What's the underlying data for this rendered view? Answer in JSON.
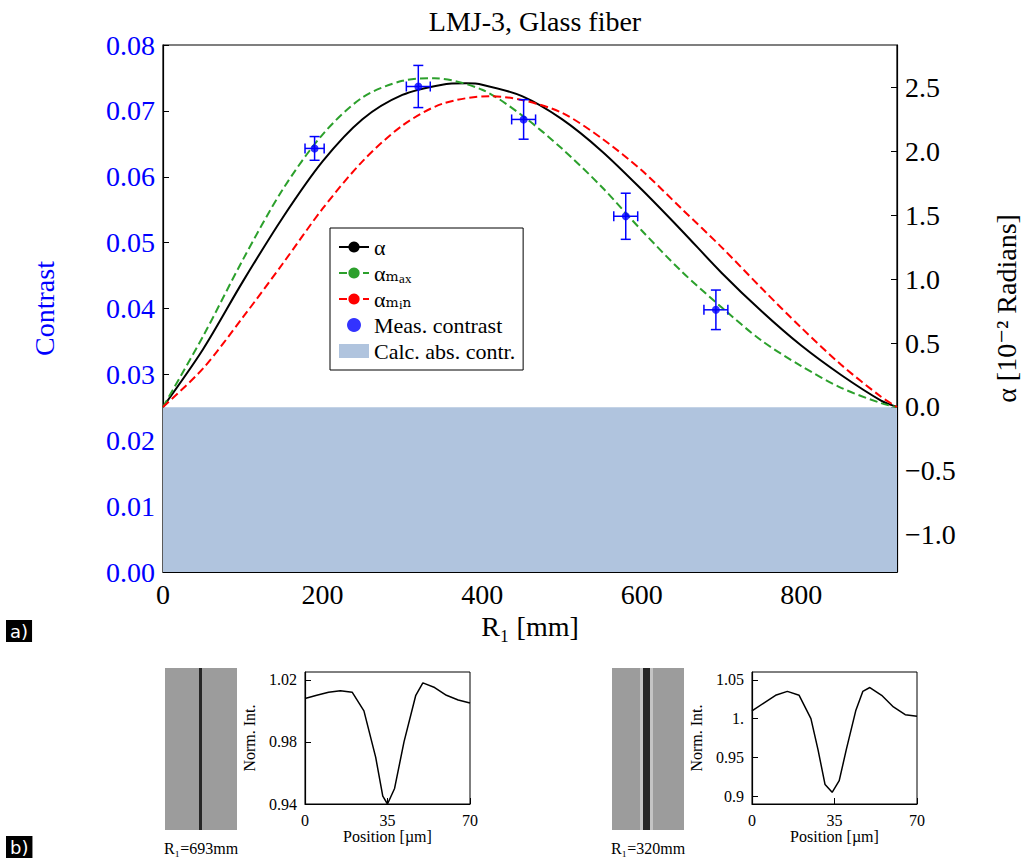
{
  "panel_labels": [
    "a)",
    "b)"
  ],
  "chart_data": [
    {
      "type": "line",
      "title": "LMJ-3, Glass fiber",
      "x_label": "R₁ [mm]",
      "y_label": "Contrast",
      "y2_label": "α [10⁻² Radians]",
      "xlim": [
        0,
        920
      ],
      "xticks": [
        0,
        200,
        400,
        600,
        800
      ],
      "ylim": [
        0,
        0.08
      ],
      "yticks": [
        {
          "value": 0,
          "label": "0.00"
        },
        0.01,
        0.02,
        0.03,
        0.04,
        0.05,
        0.06,
        0.07,
        0.08
      ],
      "y2lim": [
        -1.29,
        2.83
      ],
      "y2ticks": [
        {
          "value": -1,
          "label": "−1.0"
        },
        {
          "value": -0.5,
          "label": "−0.5"
        },
        {
          "value": 0,
          "label": "0.0"
        },
        0.5,
        {
          "value": 1,
          "label": "1.0"
        },
        1.5,
        {
          "value": 2,
          "label": "2.0"
        },
        2.5
      ],
      "grid": false,
      "legend": "center",
      "series": [
        {
          "name": "α",
          "type": "line",
          "axis": "y2",
          "color": "#000000",
          "line_style": "solid",
          "x": [
            0,
            50,
            100,
            150,
            200,
            250,
            300,
            350,
            380,
            400,
            450,
            500,
            550,
            600,
            650,
            700,
            750,
            800,
            850,
            900,
            920
          ],
          "values": [
            0,
            0.45,
            0.98,
            1.48,
            1.92,
            2.25,
            2.44,
            2.52,
            2.53,
            2.52,
            2.43,
            2.25,
            2.0,
            1.7,
            1.38,
            1.05,
            0.75,
            0.48,
            0.25,
            0.05,
            0
          ]
        },
        {
          "name": "αₘₐₓ",
          "type": "line",
          "axis": "y2",
          "color": "#2ca02c",
          "line_style": "dashed",
          "x": [
            0,
            50,
            100,
            150,
            200,
            250,
            300,
            340,
            400,
            450,
            500,
            550,
            600,
            650,
            700,
            750,
            800,
            850,
            900,
            920
          ],
          "values": [
            0,
            0.55,
            1.15,
            1.7,
            2.13,
            2.42,
            2.55,
            2.57,
            2.48,
            2.28,
            2.02,
            1.72,
            1.38,
            1.06,
            0.78,
            0.52,
            0.32,
            0.15,
            0.03,
            0
          ]
        },
        {
          "name": "αₘᵢₙ",
          "type": "line",
          "axis": "y2",
          "color": "#ff0000",
          "line_style": "dashed",
          "x": [
            0,
            50,
            100,
            150,
            200,
            250,
            300,
            350,
            410,
            450,
            500,
            550,
            600,
            650,
            700,
            750,
            800,
            850,
            900,
            920
          ],
          "values": [
            0,
            0.3,
            0.7,
            1.12,
            1.55,
            1.92,
            2.2,
            2.37,
            2.43,
            2.4,
            2.3,
            2.1,
            1.85,
            1.55,
            1.25,
            0.93,
            0.62,
            0.33,
            0.08,
            0
          ]
        },
        {
          "name": "Meas. contrast",
          "type": "scatter",
          "color": "#0000ff",
          "marker": "circle",
          "x": [
            190,
            320,
            452,
            580,
            693
          ],
          "values": [
            0.0643,
            0.0737,
            0.0687,
            0.054,
            0.0398
          ],
          "x_err": [
            12,
            15,
            15,
            15,
            15
          ],
          "y_err": [
            0.0018,
            0.0032,
            0.003,
            0.0035,
            0.003
          ]
        },
        {
          "name": "Calc. abs. contr.",
          "type": "area",
          "color": "#b0c4de",
          "x": [
            0,
            920
          ],
          "values": [
            0.025,
            0.025
          ]
        }
      ]
    },
    {
      "type": "line",
      "annotations": [
        "R₁=693mm"
      ],
      "x_label": "Position [µm]",
      "y_label": "Norm. Int.",
      "xlim": [
        0,
        70
      ],
      "xticks": [
        0,
        35,
        70
      ],
      "ylim": [
        0.94,
        1.025
      ],
      "yticks": [
        0.94,
        0.98,
        1.02
      ],
      "grid": false,
      "color": "#000000",
      "x": [
        0,
        5,
        10,
        15,
        20,
        25,
        30,
        33,
        35,
        38,
        42,
        47,
        50,
        55,
        60,
        65,
        70
      ],
      "values": [
        1.008,
        1.01,
        1.012,
        1.013,
        1.012,
        1.0,
        0.97,
        0.945,
        0.94,
        0.95,
        0.98,
        1.01,
        1.018,
        1.015,
        1.01,
        1.007,
        1.005
      ]
    },
    {
      "type": "line",
      "annotations": [
        "R₁=320mm"
      ],
      "x_label": "Position [µm]",
      "y_label": "Norm. Int.",
      "xlim": [
        0,
        70
      ],
      "xticks": [
        0,
        35,
        70
      ],
      "ylim": [
        0.89,
        1.06
      ],
      "yticks": [
        0.9,
        0.95,
        {
          "value": 1,
          "label": "1."
        },
        1.05
      ],
      "grid": false,
      "color": "#000000",
      "x": [
        0,
        5,
        10,
        15,
        20,
        25,
        28,
        31,
        34,
        37,
        40,
        44,
        47,
        50,
        55,
        60,
        65,
        70
      ],
      "values": [
        1.01,
        1.02,
        1.03,
        1.035,
        1.03,
        1.0,
        0.96,
        0.915,
        0.905,
        0.92,
        0.96,
        1.01,
        1.035,
        1.04,
        1.03,
        1.015,
        1.005,
        1.003
      ]
    }
  ]
}
